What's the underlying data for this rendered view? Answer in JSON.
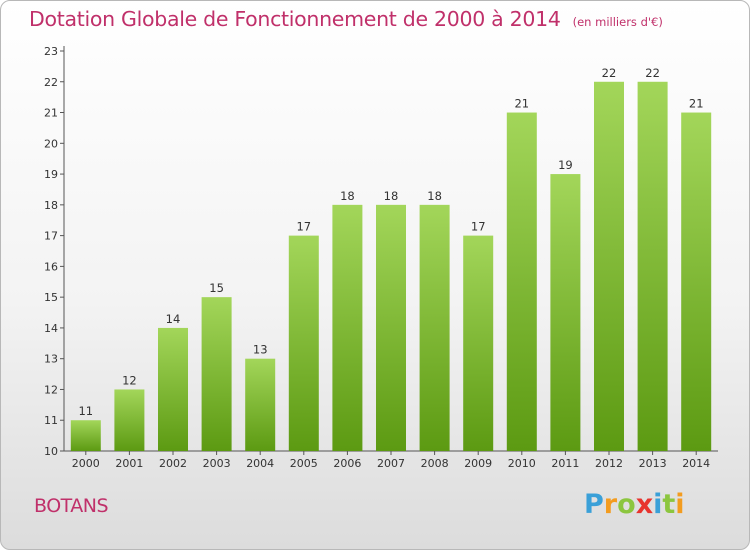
{
  "chart_data": {
    "type": "bar",
    "title": "Dotation Globale de Fonctionnement de 2000 à 2014",
    "unit_label": "(en milliers d'€)",
    "categories": [
      "2000",
      "2001",
      "2002",
      "2003",
      "2004",
      "2005",
      "2006",
      "2007",
      "2008",
      "2009",
      "2010",
      "2011",
      "2012",
      "2013",
      "2014"
    ],
    "values": [
      11,
      12,
      14,
      15,
      13,
      17,
      18,
      18,
      18,
      17,
      21,
      19,
      22,
      22,
      21
    ],
    "ylim": [
      10,
      23
    ],
    "yticks": [
      "10",
      "11",
      "12",
      "13",
      "14",
      "15",
      "16",
      "17",
      "18",
      "19",
      "20",
      "21",
      "22",
      "23"
    ],
    "grid": false,
    "bar_color": "#8cc63f"
  },
  "commune": "BOTANS",
  "logo": {
    "letters": [
      "P",
      "r",
      "o",
      "x",
      "i",
      "t",
      "i"
    ],
    "colors": [
      "#3aa0d8",
      "#f39c1f",
      "#8cc63f",
      "#e8342e",
      "#3aa0d8",
      "#8cc63f",
      "#f39c1f"
    ]
  }
}
